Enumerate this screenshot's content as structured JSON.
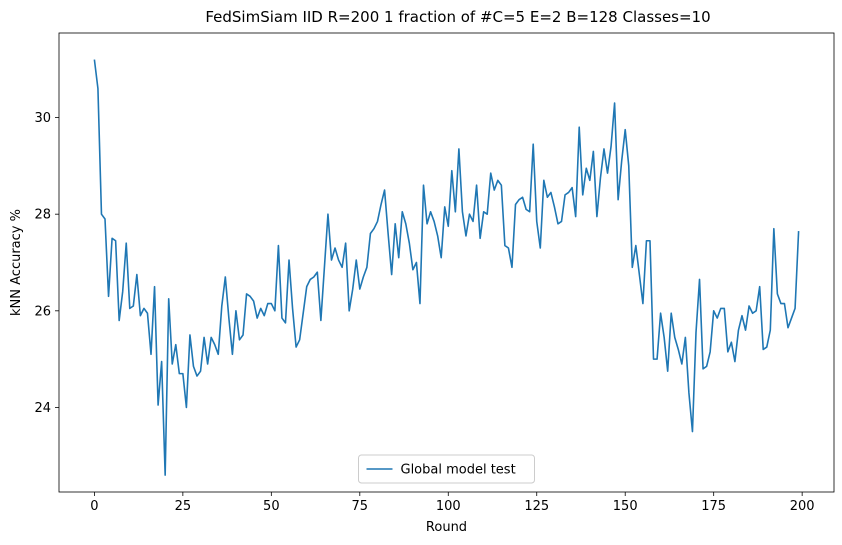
{
  "chart_data": {
    "type": "line",
    "title": "FedSimSiam IID R=200 1 fraction of #C=5 E=2 B=128  Classes=10",
    "xlabel": "Round",
    "ylabel": "kNN Accuracy %",
    "xlim": [
      -10,
      209
    ],
    "ylim": [
      22.25,
      31.75
    ],
    "xticks": [
      0,
      25,
      50,
      75,
      100,
      125,
      150,
      175,
      200
    ],
    "yticks": [
      24,
      26,
      28,
      30
    ],
    "grid": false,
    "legend": "bottom-center",
    "series": [
      {
        "name": "Global model test",
        "color": "#1f77b4",
        "x_start": 0,
        "x_step": 1,
        "values": [
          31.2,
          30.6,
          28.0,
          27.9,
          26.3,
          27.5,
          27.45,
          25.8,
          26.4,
          27.4,
          26.05,
          26.1,
          26.75,
          25.9,
          26.05,
          25.95,
          25.1,
          26.5,
          24.05,
          24.95,
          22.6,
          26.25,
          24.9,
          25.3,
          24.7,
          24.7,
          24.0,
          25.5,
          24.85,
          24.65,
          24.75,
          25.45,
          24.9,
          25.45,
          25.3,
          25.1,
          26.1,
          26.7,
          25.85,
          25.1,
          26.0,
          25.4,
          25.5,
          26.35,
          26.3,
          26.2,
          25.85,
          26.05,
          25.9,
          26.15,
          26.15,
          26.0,
          27.35,
          25.85,
          25.75,
          27.05,
          26.05,
          25.25,
          25.4,
          25.95,
          26.5,
          26.65,
          26.7,
          26.8,
          25.8,
          26.9,
          28.0,
          27.05,
          27.3,
          27.05,
          26.9,
          27.4,
          26.0,
          26.45,
          27.05,
          26.45,
          26.7,
          26.9,
          27.6,
          27.7,
          27.85,
          28.2,
          28.5,
          27.6,
          26.75,
          27.8,
          27.1,
          28.05,
          27.8,
          27.4,
          26.85,
          27.0,
          26.15,
          28.6,
          27.8,
          28.05,
          27.85,
          27.55,
          27.1,
          28.15,
          27.75,
          28.9,
          28.05,
          29.35,
          28.05,
          27.55,
          28.0,
          27.85,
          28.6,
          27.5,
          28.05,
          28.0,
          28.85,
          28.5,
          28.7,
          28.6,
          27.35,
          27.3,
          26.9,
          28.2,
          28.3,
          28.35,
          28.1,
          28.05,
          29.45,
          27.85,
          27.3,
          28.7,
          28.35,
          28.45,
          28.15,
          27.8,
          27.85,
          28.4,
          28.45,
          28.55,
          27.95,
          29.8,
          28.4,
          28.95,
          28.7,
          29.3,
          27.95,
          28.75,
          29.35,
          28.85,
          29.4,
          30.3,
          28.3,
          29.1,
          29.75,
          29.0,
          26.9,
          27.35,
          26.75,
          26.15,
          27.45,
          27.45,
          25.0,
          25.0,
          25.95,
          25.45,
          24.75,
          25.95,
          25.45,
          25.2,
          24.9,
          25.45,
          24.3,
          23.5,
          25.55,
          26.65,
          24.8,
          24.85,
          25.15,
          26.0,
          25.85,
          26.05,
          26.05,
          25.15,
          25.35,
          24.95,
          25.6,
          25.9,
          25.6,
          26.1,
          25.95,
          26.0,
          26.5,
          25.2,
          25.25,
          25.6,
          27.7,
          26.35,
          26.15,
          26.15,
          25.65,
          25.85,
          26.05,
          27.65
        ]
      }
    ]
  }
}
